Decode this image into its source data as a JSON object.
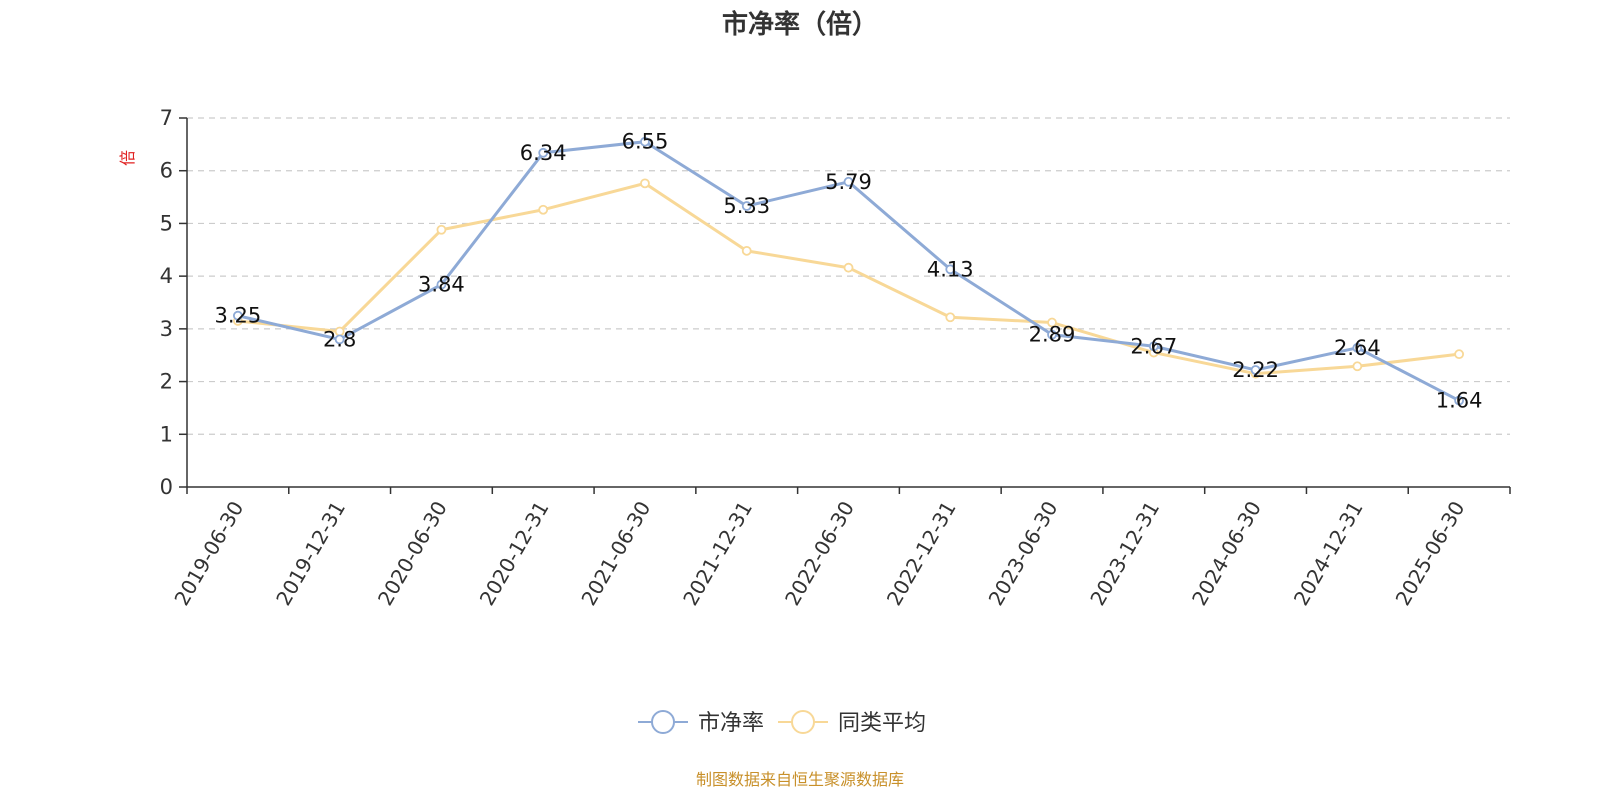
{
  "chart_data": {
    "type": "line",
    "title": "市净率（倍）",
    "ylabel": "倍",
    "xlabel": "",
    "ylim": [
      0,
      7
    ],
    "yticks": [
      0,
      1,
      2,
      3,
      4,
      5,
      6,
      7
    ],
    "grid": true,
    "legend_position": "bottom",
    "categories": [
      "2019-06-30",
      "2019-12-31",
      "2020-06-30",
      "2020-12-31",
      "2021-06-30",
      "2021-12-31",
      "2022-06-30",
      "2022-12-31",
      "2023-06-30",
      "2023-12-31",
      "2024-06-30",
      "2024-12-31",
      "2025-06-30"
    ],
    "series": [
      {
        "name": "市净率",
        "color": "#8eaad6",
        "show_labels": true,
        "values": [
          3.25,
          2.8,
          3.84,
          6.34,
          6.55,
          5.33,
          5.79,
          4.13,
          2.89,
          2.67,
          2.22,
          2.64,
          1.64
        ],
        "labels": [
          "3.25",
          "2.8",
          "3.84",
          "6.34",
          "6.55",
          "5.33",
          "5.79",
          "4.13",
          "2.89",
          "2.67",
          "2.22",
          "2.64",
          "1.64"
        ]
      },
      {
        "name": "同类平均",
        "color": "#f8d897",
        "show_labels": false,
        "values": [
          3.15,
          2.95,
          4.88,
          5.26,
          5.76,
          4.48,
          4.16,
          3.22,
          3.12,
          2.55,
          2.15,
          2.29,
          2.52
        ]
      }
    ]
  },
  "source_note": "制图数据来自恒生聚源数据库",
  "ylabel_color": "#e02020"
}
